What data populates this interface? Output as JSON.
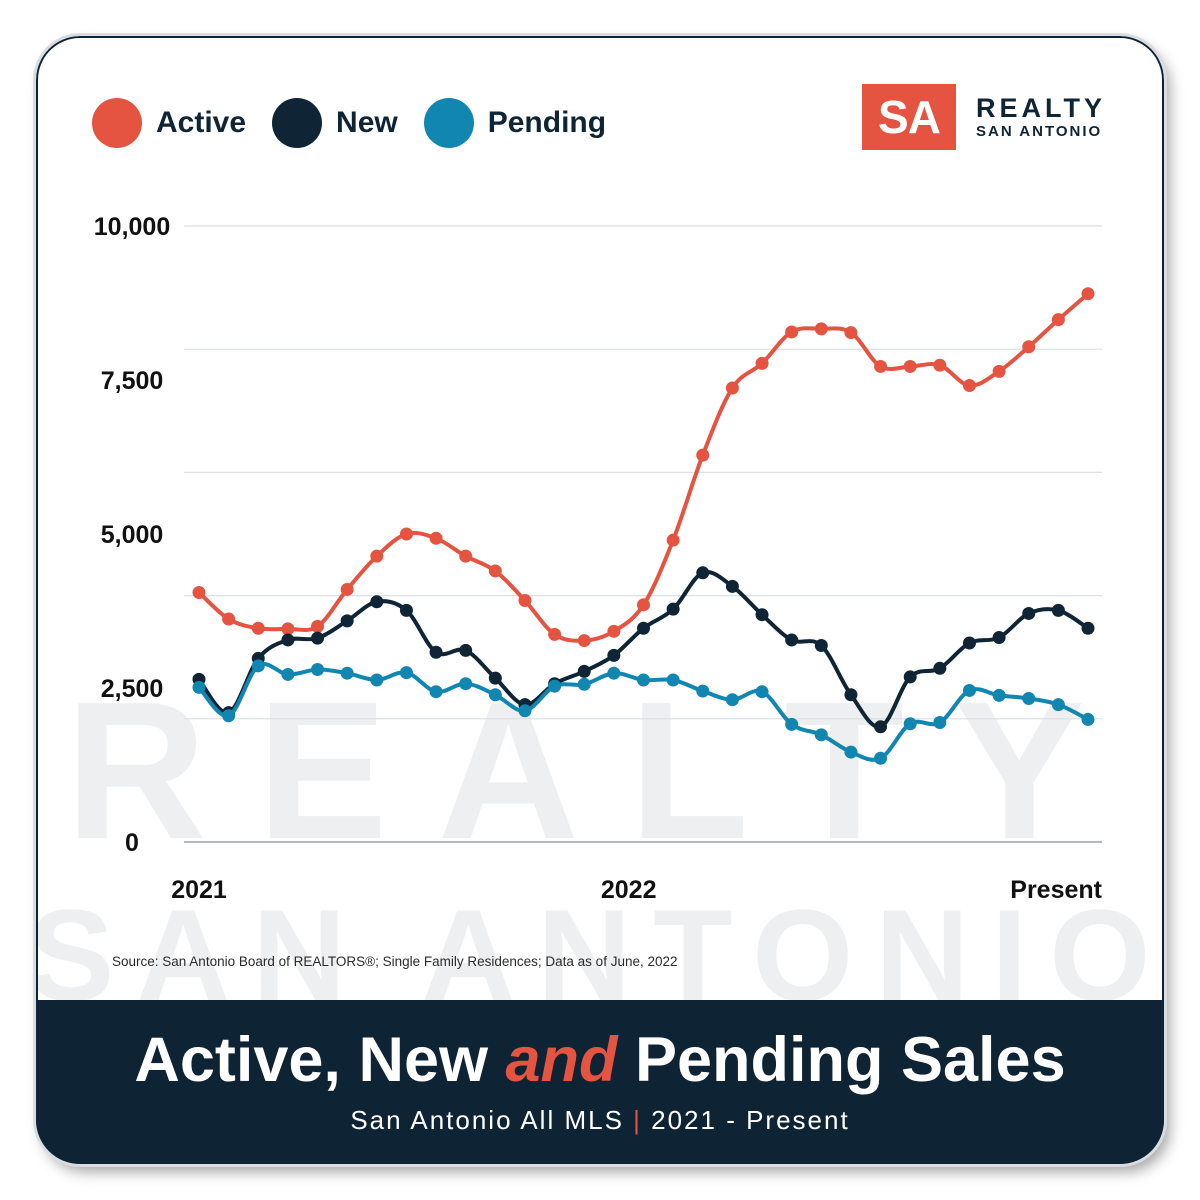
{
  "legend": [
    {
      "label": "Active",
      "color": "#e45440"
    },
    {
      "label": "New",
      "color": "#0f2535"
    },
    {
      "label": "Pending",
      "color": "#1186b0"
    }
  ],
  "logo": {
    "badge": "SA",
    "line1": "REALTY",
    "line2": "SAN ANTONIO"
  },
  "watermark": {
    "line1": "REALTY",
    "line2": "SAN ANTONIO"
  },
  "source": "Source: San Antonio Board of REALTORS®; Single Family Residences; Data as of June, 2022",
  "footer": {
    "title_pre": "Active, New ",
    "title_accent": "and",
    "title_post": " Pending Sales",
    "subtitle_pre": "San Antonio All MLS ",
    "subtitle_sep": "|",
    "subtitle_post": " 2021 - Present"
  },
  "chart_data": {
    "type": "line",
    "x_labels": [
      "2021",
      "2022",
      "Present"
    ],
    "x_label_positions": [
      0,
      14.5,
      30
    ],
    "y_ticks": [
      0,
      2500,
      5000,
      7500,
      10000
    ],
    "y_tick_labels": [
      "0",
      "2,500",
      "5,000",
      "7,500",
      "10,000"
    ],
    "ylim": [
      0,
      10000
    ],
    "grid": true,
    "legend_position": "top-left",
    "series": [
      {
        "name": "Active",
        "color": "#e45440",
        "values": [
          4050,
          3620,
          3470,
          3460,
          3500,
          4100,
          4640,
          5000,
          4930,
          4640,
          4400,
          3920,
          3370,
          3270,
          3420,
          3850,
          4900,
          6280,
          7370,
          7770,
          8280,
          8330,
          8270,
          7720,
          7720,
          7740,
          7410,
          7640,
          8040,
          8480,
          8900
        ]
      },
      {
        "name": "New",
        "color": "#0f2535",
        "values": [
          2640,
          2100,
          2980,
          3280,
          3310,
          3590,
          3900,
          3760,
          3080,
          3110,
          2660,
          2230,
          2570,
          2770,
          3030,
          3470,
          3780,
          4370,
          4150,
          3690,
          3280,
          3190,
          2390,
          1870,
          2680,
          2820,
          3230,
          3320,
          3710,
          3760,
          3470
        ]
      },
      {
        "name": "Pending",
        "color": "#1186b0",
        "values": [
          2510,
          2050,
          2860,
          2720,
          2800,
          2740,
          2630,
          2750,
          2440,
          2570,
          2390,
          2130,
          2530,
          2560,
          2740,
          2630,
          2630,
          2450,
          2310,
          2440,
          1910,
          1740,
          1460,
          1360,
          1920,
          1940,
          2460,
          2380,
          2330,
          2230,
          1990
        ]
      }
    ]
  }
}
